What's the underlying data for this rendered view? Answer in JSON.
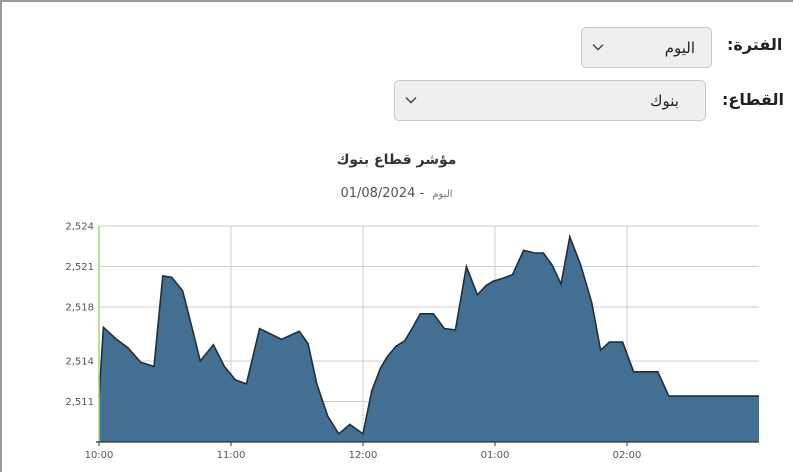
{
  "filters": {
    "period": {
      "label": "الفترة:",
      "value": "اليوم"
    },
    "sector": {
      "label": "القطاع:",
      "value": "بنوك"
    }
  },
  "chart_data": {
    "type": "area",
    "title": "مؤشر قطاع بنوك",
    "subtitle_label": "اليوم",
    "subtitle_separator": "-",
    "subtitle_date": "01/08/2024",
    "x_ticks": [
      "10:00",
      "11:00",
      "12:00",
      "01:00",
      "02:00"
    ],
    "y_ticks": [
      "2,511",
      "2,514",
      "2,518",
      "2,521",
      "2,524"
    ],
    "ylim": [
      2508.0,
      2524.0
    ],
    "xlim": [
      0,
      300
    ],
    "x_unit": "minutes since 10:00",
    "grid": true,
    "colors": {
      "fill": "#436f92",
      "line": "#1f2f3d",
      "grid": "#cfcfcf",
      "axis": "#333333",
      "start_marker": "#a6d96a"
    },
    "series": [
      {
        "x": [
          0,
          2,
          8,
          13,
          19,
          25,
          29,
          33,
          38,
          43,
          46,
          52,
          57,
          62,
          67,
          73,
          78,
          83,
          91,
          95,
          99,
          104,
          109,
          114,
          120,
          124,
          128,
          131,
          135,
          139,
          143,
          146,
          152,
          157,
          162,
          167,
          172,
          176,
          179,
          183,
          188,
          193,
          198,
          202,
          206,
          210,
          214,
          219,
          224,
          228,
          232,
          238,
          243,
          248,
          254,
          259,
          264,
          267,
          273,
          281,
          287,
          300
        ],
        "y": [
          2511.3,
          2516.5,
          2515.6,
          2515.0,
          2513.9,
          2513.6,
          2520.3,
          2520.2,
          2519.2,
          2516.0,
          2514.0,
          2515.2,
          2513.6,
          2512.6,
          2512.3,
          2516.4,
          2516.0,
          2515.6,
          2516.2,
          2515.3,
          2512.3,
          2509.9,
          2508.6,
          2509.3,
          2508.6,
          2511.8,
          2513.5,
          2514.3,
          2515.1,
          2515.5,
          2516.6,
          2517.5,
          2517.5,
          2516.4,
          2516.3,
          2521.0,
          2518.9,
          2519.6,
          2519.9,
          2520.1,
          2520.4,
          2522.2,
          2522.0,
          2522.0,
          2521.1,
          2519.7,
          2523.2,
          2521.1,
          2518.3,
          2514.8,
          2515.4,
          2515.4,
          2513.2,
          2513.2,
          2513.2,
          2511.4,
          2511.4,
          2511.4,
          2511.4,
          2511.4,
          2511.4,
          2511.4
        ]
      }
    ]
  }
}
